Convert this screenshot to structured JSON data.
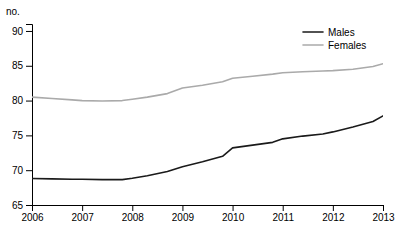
{
  "chart_data": {
    "type": "line",
    "ylabel": "no.",
    "x": [
      2006,
      2006.4,
      2006.8,
      2007,
      2007.4,
      2007.8,
      2008,
      2008.3,
      2008.7,
      2009,
      2009.4,
      2009.8,
      2010,
      2010.4,
      2010.8,
      2011,
      2011.4,
      2011.8,
      2012,
      2012.4,
      2012.8,
      2013
    ],
    "series": [
      {
        "name": "Males",
        "color": "#1a1a1a",
        "values": [
          68.8,
          68.75,
          68.7,
          68.7,
          68.65,
          68.65,
          68.85,
          69.2,
          69.8,
          70.5,
          71.2,
          72.0,
          73.2,
          73.6,
          74.0,
          74.5,
          74.9,
          75.2,
          75.5,
          76.2,
          77.0,
          77.8
        ]
      },
      {
        "name": "Females",
        "color": "#aaaaaa",
        "values": [
          80.5,
          80.3,
          80.1,
          80.0,
          79.95,
          80.0,
          80.2,
          80.5,
          81.0,
          81.8,
          82.2,
          82.7,
          83.2,
          83.5,
          83.8,
          84.0,
          84.15,
          84.25,
          84.3,
          84.5,
          84.9,
          85.3
        ]
      }
    ],
    "xlim": [
      2006,
      2013
    ],
    "xticks": [
      2006,
      2007,
      2008,
      2009,
      2010,
      2011,
      2012,
      2013
    ],
    "ylim": [
      65,
      91
    ],
    "yticks": [
      65,
      70,
      75,
      80,
      85,
      90
    ],
    "grid": false,
    "legend": "upper right"
  }
}
